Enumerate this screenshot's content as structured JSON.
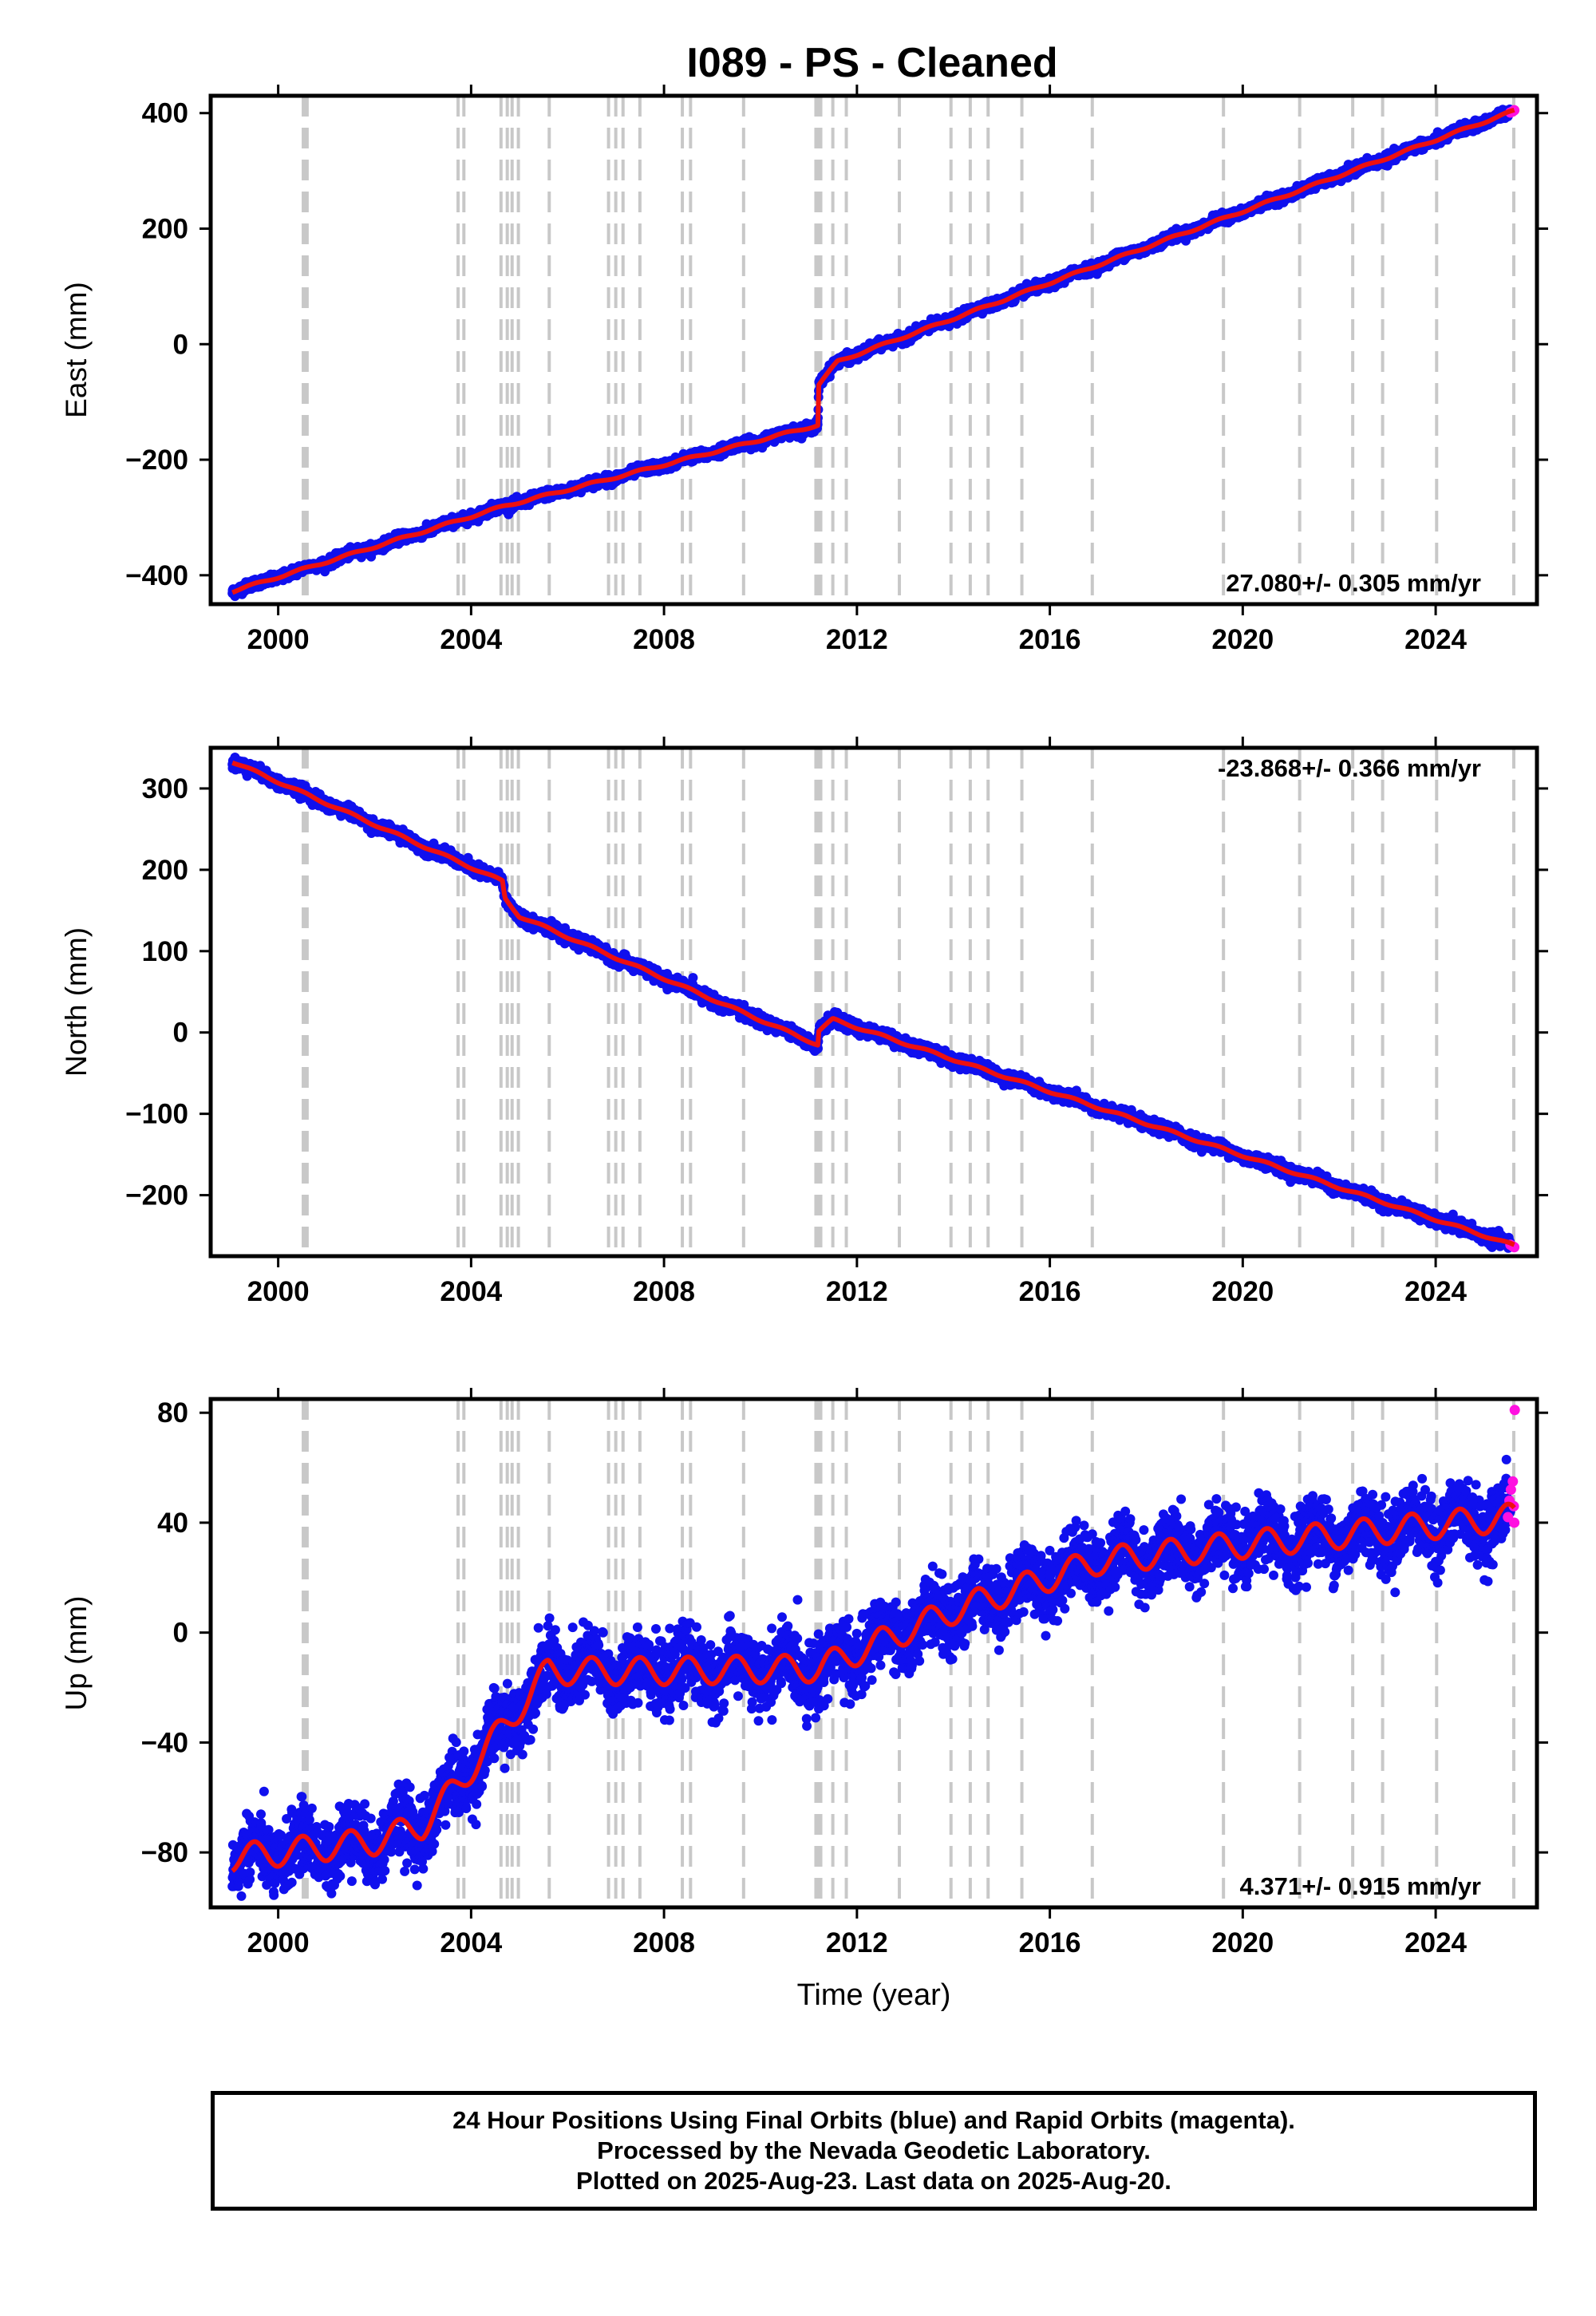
{
  "title": "I089  - PS - Cleaned",
  "colors": {
    "final": "#1010ee",
    "rapid": "#ff10e0",
    "model": "#ee1010",
    "offset_line": "#c8c8c8"
  },
  "chart_data": [
    {
      "type": "scatter",
      "component": "East",
      "ylabel": "East (mm)",
      "xlabel": "",
      "xlim": [
        1998.6,
        2026.1
      ],
      "ylim": [
        -450,
        430
      ],
      "xticks": [
        2000,
        2004,
        2008,
        2012,
        2016,
        2020,
        2024
      ],
      "yticks": [
        -400,
        -200,
        0,
        200,
        400
      ],
      "ytick_labels": [
        "−400",
        "−200",
        "0",
        "200",
        "400"
      ],
      "rate_label": "27.080+/- 0.305 mm/yr",
      "rate_position": "bottom-right",
      "trend": {
        "x": [
          1999.05,
          2004.7,
          2011.19,
          2011.21,
          2011.6,
          2025.63
        ],
        "y": [
          -428,
          -280,
          -140,
          -70,
          -30,
          404
        ]
      },
      "noise_mm": 4,
      "seasonal_mm": 2,
      "rapid_points": {
        "x": [
          2025.55,
          2025.6,
          2025.63
        ],
        "y": [
          401,
          403,
          405
        ]
      }
    },
    {
      "type": "scatter",
      "component": "North",
      "ylabel": "North (mm)",
      "xlabel": "",
      "xlim": [
        1998.6,
        2026.1
      ],
      "ylim": [
        -275,
        350
      ],
      "xticks": [
        2000,
        2004,
        2008,
        2012,
        2016,
        2020,
        2024
      ],
      "yticks": [
        -200,
        -100,
        0,
        100,
        200,
        300
      ],
      "ytick_labels": [
        "−200",
        "−100",
        "0",
        "100",
        "200",
        "300"
      ],
      "rate_label": "-23.868+/- 0.366 mm/yr",
      "rate_position": "top-right",
      "trend": {
        "x": [
          1999.05,
          2004.65,
          2004.7,
          2005.0,
          2011.19,
          2011.21,
          2011.5,
          2025.63
        ],
        "y": [
          333,
          186,
          165,
          143,
          -15,
          2,
          16,
          -262
        ]
      },
      "noise_mm": 3.5,
      "seasonal_mm": 1.5,
      "rapid_points": {
        "x": [
          2025.55,
          2025.6,
          2025.63
        ],
        "y": [
          -261,
          -263,
          -264
        ]
      }
    },
    {
      "type": "scatter",
      "component": "Up",
      "ylabel": "Up (mm)",
      "xlabel": "Time (year)",
      "xlim": [
        1998.6,
        2026.1
      ],
      "ylim": [
        -100,
        85
      ],
      "xticks": [
        2000,
        2004,
        2008,
        2012,
        2016,
        2020,
        2024
      ],
      "yticks": [
        -80,
        -40,
        0,
        40,
        80
      ],
      "ytick_labels": [
        "−80",
        "−40",
        "0",
        "40",
        "80"
      ],
      "rate_label": "4.371+/- 0.915 mm/yr",
      "rate_position": "bottom-right",
      "trend": {
        "x": [
          1999.05,
          2002.0,
          2003.0,
          2003.7,
          2004.6,
          2005.6,
          2008.0,
          2011.2,
          2014.0,
          2017.0,
          2020.0,
          2025.63
        ],
        "y": [
          -82,
          -76,
          -70,
          -56,
          -36,
          -14,
          -14,
          -13,
          8,
          26,
          32,
          42
        ]
      },
      "noise_mm": 6,
      "seasonal_mm": 5,
      "rapid_points": {
        "x": [
          2025.5,
          2025.53,
          2025.56,
          2025.6,
          2025.62,
          2025.63,
          2025.64
        ],
        "y": [
          42,
          48,
          52,
          55,
          46,
          40,
          81
        ]
      }
    }
  ],
  "offset_lines": [
    2000.52,
    2000.56,
    2000.6,
    2003.73,
    2003.85,
    2004.62,
    2004.75,
    2004.85,
    2004.98,
    2005.62,
    2006.85,
    2007.0,
    2007.15,
    2007.5,
    2008.38,
    2008.55,
    2009.65,
    2011.15,
    2011.2,
    2011.25,
    2011.5,
    2011.78,
    2012.88,
    2013.95,
    2014.35,
    2014.72,
    2015.42,
    2016.88,
    2019.6,
    2021.18,
    2022.28,
    2022.9,
    2024.02,
    2025.62
  ],
  "footer": {
    "line1": "24 Hour Positions Using Final Orbits (blue) and Rapid Orbits (magenta).",
    "line2": "Processed by the Nevada Geodetic Laboratory.",
    "line3": "Plotted on 2025-Aug-23. Last data on 2025-Aug-20."
  }
}
